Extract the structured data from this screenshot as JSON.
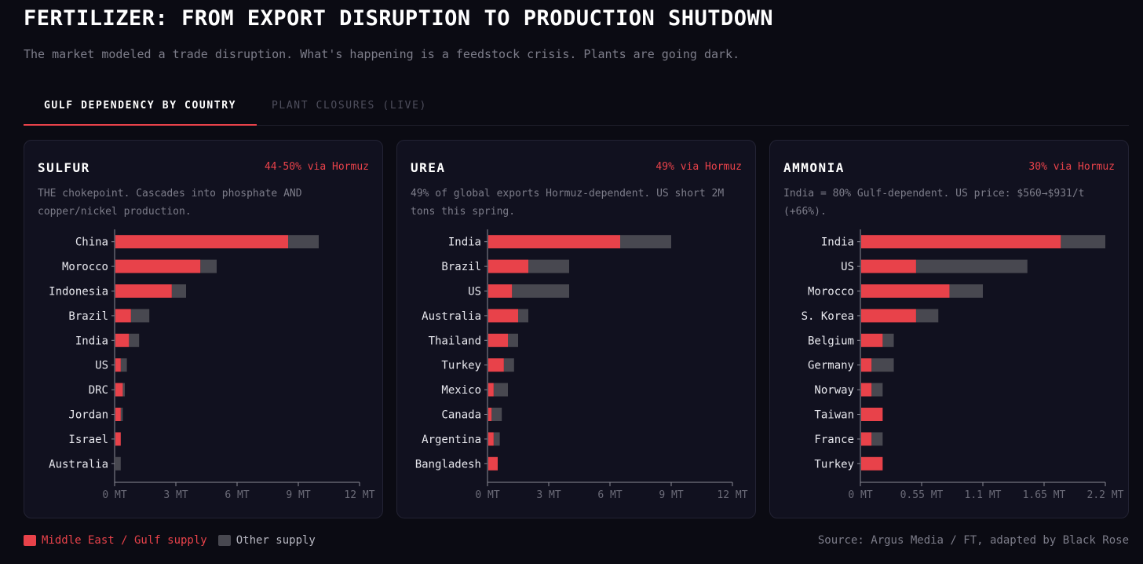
{
  "header": {
    "title": "FERTILIZER: FROM EXPORT DISRUPTION TO PRODUCTION SHUTDOWN",
    "subtitle": "The market modeled a trade disruption. What's happening is a feedstock crisis. Plants are going dark."
  },
  "tabs": [
    {
      "label": "GULF DEPENDENCY BY COUNTRY",
      "active": true
    },
    {
      "label": "PLANT CLOSURES (LIVE)",
      "active": false
    }
  ],
  "colors": {
    "gulf": "#e8424a",
    "other": "#484850",
    "tick": "#6b6b78",
    "axis": "#8a8a96"
  },
  "chart_data": [
    {
      "type": "bar",
      "orientation": "horizontal",
      "stacked": true,
      "title": "SULFUR",
      "tag": "44-50% via Hormuz",
      "description": "THE chokepoint. Cascades into phosphate AND copper/nickel production.",
      "categories": [
        "China",
        "Morocco",
        "Indonesia",
        "Brazil",
        "India",
        "US",
        "DRC",
        "Jordan",
        "Israel",
        "Australia"
      ],
      "series": [
        {
          "name": "Middle East / Gulf supply",
          "values": [
            8.5,
            4.2,
            2.8,
            0.8,
            0.7,
            0.3,
            0.4,
            0.3,
            0.3,
            0
          ]
        },
        {
          "name": "Other supply",
          "values": [
            1.5,
            0.8,
            0.7,
            0.9,
            0.5,
            0.3,
            0.1,
            0.1,
            0,
            0.3
          ]
        }
      ],
      "xlim": [
        0,
        12
      ],
      "xticks": [
        0,
        3,
        6,
        9,
        12
      ],
      "xtick_labels": [
        "0 MT",
        "3 MT",
        "6 MT",
        "9 MT",
        "12 MT"
      ]
    },
    {
      "type": "bar",
      "orientation": "horizontal",
      "stacked": true,
      "title": "UREA",
      "tag": "49% via Hormuz",
      "description": "49% of global exports Hormuz-dependent. US short 2M tons this spring.",
      "categories": [
        "India",
        "Brazil",
        "US",
        "Australia",
        "Thailand",
        "Turkey",
        "Mexico",
        "Canada",
        "Argentina",
        "Bangladesh"
      ],
      "series": [
        {
          "name": "Middle East / Gulf supply",
          "values": [
            6.5,
            2.0,
            1.2,
            1.5,
            1.0,
            0.8,
            0.3,
            0.2,
            0.3,
            0.5
          ]
        },
        {
          "name": "Other supply",
          "values": [
            2.5,
            2.0,
            2.8,
            0.5,
            0.5,
            0.5,
            0.7,
            0.5,
            0.3,
            0
          ]
        }
      ],
      "xlim": [
        0,
        12
      ],
      "xticks": [
        0,
        3,
        6,
        9,
        12
      ],
      "xtick_labels": [
        "0 MT",
        "3 MT",
        "6 MT",
        "9 MT",
        "12 MT"
      ]
    },
    {
      "type": "bar",
      "orientation": "horizontal",
      "stacked": true,
      "title": "AMMONIA",
      "tag": "30% via Hormuz",
      "description": "India = 80% Gulf-dependent. US price: $560→$931/t (+66%).",
      "categories": [
        "India",
        "US",
        "Morocco",
        "S. Korea",
        "Belgium",
        "Germany",
        "Norway",
        "Taiwan",
        "France",
        "Turkey"
      ],
      "series": [
        {
          "name": "Middle East / Gulf supply",
          "values": [
            1.8,
            0.5,
            0.8,
            0.5,
            0.2,
            0.1,
            0.1,
            0.2,
            0.1,
            0.2
          ]
        },
        {
          "name": "Other supply",
          "values": [
            0.4,
            1.0,
            0.3,
            0.2,
            0.1,
            0.2,
            0.1,
            0,
            0.1,
            0
          ]
        }
      ],
      "xlim": [
        0,
        2.2
      ],
      "xticks": [
        0,
        0.55,
        1.1,
        1.65,
        2.2
      ],
      "xtick_labels": [
        "0 MT",
        "0.55 MT",
        "1.1 MT",
        "1.65 MT",
        "2.2 MT"
      ]
    }
  ],
  "legend": {
    "gulf_label": "Middle East / Gulf supply",
    "other_label": "Other supply"
  },
  "footer": {
    "source": "Source: Argus Media / FT, adapted by Black Rose"
  }
}
